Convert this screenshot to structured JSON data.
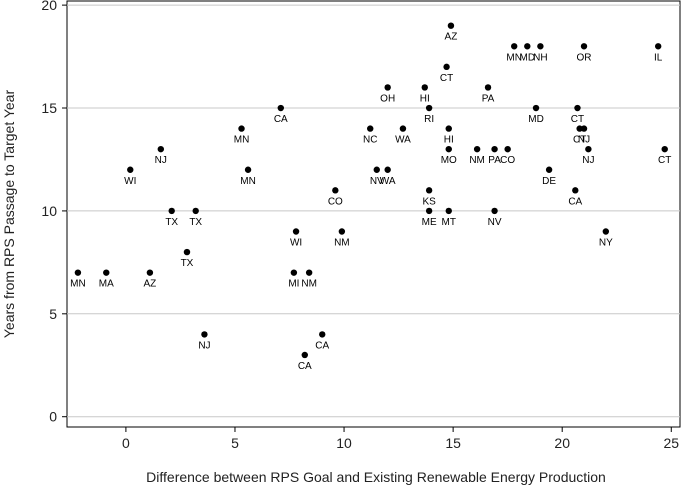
{
  "chart_data": {
    "type": "scatter",
    "title": "",
    "xlabel": "Difference between RPS Goal and Existing Renewable Energy Production",
    "ylabel": "Years from RPS Passage to Target Year",
    "xlim": [
      -2.7,
      25.4
    ],
    "ylim": [
      -0.5,
      20.2
    ],
    "xticks": [
      0,
      5,
      10,
      15,
      20,
      25
    ],
    "yticks": [
      0,
      5,
      10,
      15,
      20
    ],
    "grid": "horizontal",
    "legend": "none",
    "point_color": "#000000",
    "points": [
      {
        "x": -2.2,
        "y": 7,
        "label": "MN"
      },
      {
        "x": -0.9,
        "y": 7,
        "label": "MA"
      },
      {
        "x": 1.1,
        "y": 7,
        "label": "AZ"
      },
      {
        "x": 0.2,
        "y": 12,
        "label": "WI"
      },
      {
        "x": 1.6,
        "y": 13,
        "label": "NJ"
      },
      {
        "x": 2.1,
        "y": 10,
        "label": "TX"
      },
      {
        "x": 3.2,
        "y": 10,
        "label": "TX"
      },
      {
        "x": 2.8,
        "y": 8,
        "label": "TX"
      },
      {
        "x": 3.6,
        "y": 4,
        "label": "NJ"
      },
      {
        "x": 5.3,
        "y": 14,
        "label": "MN"
      },
      {
        "x": 5.6,
        "y": 12,
        "label": "MN"
      },
      {
        "x": 7.1,
        "y": 15,
        "label": "CA"
      },
      {
        "x": 7.8,
        "y": 9,
        "label": "WI"
      },
      {
        "x": 7.7,
        "y": 7,
        "label": "MI"
      },
      {
        "x": 8.4,
        "y": 7,
        "label": "NM"
      },
      {
        "x": 8.2,
        "y": 3,
        "label": "CA"
      },
      {
        "x": 9.0,
        "y": 4,
        "label": "CA"
      },
      {
        "x": 9.6,
        "y": 11,
        "label": "CO"
      },
      {
        "x": 9.9,
        "y": 9,
        "label": "NM"
      },
      {
        "x": 11.2,
        "y": 14,
        "label": "NC"
      },
      {
        "x": 11.5,
        "y": 12,
        "label": "NV"
      },
      {
        "x": 12.0,
        "y": 12,
        "label": "WA"
      },
      {
        "x": 12.7,
        "y": 14,
        "label": "WA"
      },
      {
        "x": 12.0,
        "y": 16,
        "label": "OH"
      },
      {
        "x": 13.7,
        "y": 16,
        "label": "HI"
      },
      {
        "x": 13.9,
        "y": 15,
        "label": "RI"
      },
      {
        "x": 14.8,
        "y": 14,
        "label": "HI"
      },
      {
        "x": 14.8,
        "y": 13,
        "label": "MO"
      },
      {
        "x": 13.9,
        "y": 11,
        "label": "KS"
      },
      {
        "x": 13.9,
        "y": 10,
        "label": "ME"
      },
      {
        "x": 14.8,
        "y": 10,
        "label": "MT"
      },
      {
        "x": 14.9,
        "y": 19,
        "label": "AZ"
      },
      {
        "x": 14.7,
        "y": 17,
        "label": "CT"
      },
      {
        "x": 16.6,
        "y": 16,
        "label": "PA"
      },
      {
        "x": 16.1,
        "y": 13,
        "label": "NM"
      },
      {
        "x": 16.9,
        "y": 13,
        "label": "PA"
      },
      {
        "x": 17.5,
        "y": 13,
        "label": "CO"
      },
      {
        "x": 16.9,
        "y": 10,
        "label": "NV"
      },
      {
        "x": 17.8,
        "y": 18,
        "label": "MN"
      },
      {
        "x": 18.4,
        "y": 18,
        "label": "MD"
      },
      {
        "x": 19.0,
        "y": 18,
        "label": "NH"
      },
      {
        "x": 18.8,
        "y": 15,
        "label": "MD"
      },
      {
        "x": 19.4,
        "y": 12,
        "label": "DE"
      },
      {
        "x": 21.0,
        "y": 18,
        "label": "OR"
      },
      {
        "x": 20.7,
        "y": 15,
        "label": "CT"
      },
      {
        "x": 20.8,
        "y": 14,
        "label": "CT"
      },
      {
        "x": 21.0,
        "y": 14,
        "label": "NJ"
      },
      {
        "x": 21.2,
        "y": 13,
        "label": "NJ"
      },
      {
        "x": 20.6,
        "y": 11,
        "label": "CA"
      },
      {
        "x": 22.0,
        "y": 9,
        "label": "NY"
      },
      {
        "x": 24.4,
        "y": 18,
        "label": "IL"
      },
      {
        "x": 24.7,
        "y": 13,
        "label": "CT"
      }
    ]
  }
}
